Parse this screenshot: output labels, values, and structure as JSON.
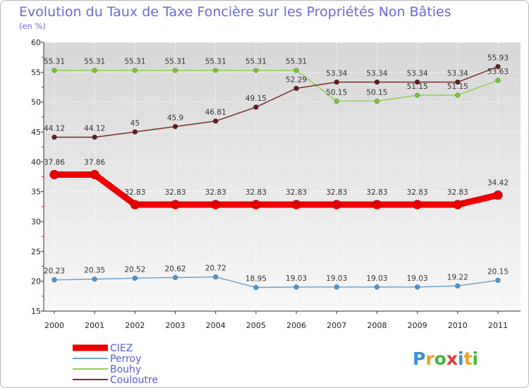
{
  "title": "Evolution du Taux de Taxe Foncière sur les Propriétés Non Bâties",
  "subtitle": "(en %)",
  "logo": "Proxiti",
  "chart_data": {
    "type": "line",
    "categories": [
      "2000",
      "2001",
      "2002",
      "2003",
      "2004",
      "2005",
      "2006",
      "2007",
      "2008",
      "2009",
      "2010",
      "2011"
    ],
    "ylim": [
      15,
      60
    ],
    "yticks": [
      15,
      20,
      25,
      30,
      35,
      40,
      45,
      50,
      55,
      60
    ],
    "ylabel": "(en %)",
    "series": [
      {
        "name": "Bouhy",
        "color": "#8fd14f",
        "dot": "#7ac13a",
        "width": 1.5,
        "r": 3.5,
        "values": [
          55.31,
          55.31,
          55.31,
          55.31,
          55.31,
          55.31,
          55.31,
          50.15,
          50.15,
          51.15,
          51.15,
          53.63
        ],
        "labels": [
          "55.31",
          "55.31",
          "55.31",
          "55.31",
          "55.31",
          "55.31",
          "55.31",
          "50.15",
          "50.15",
          "51.15",
          "51.15",
          "53.63"
        ]
      },
      {
        "name": "Couloutre",
        "color": "#7b2c2c",
        "dot": "#5e1f1f",
        "width": 1.5,
        "r": 3.5,
        "values": [
          44.12,
          44.12,
          45,
          45.9,
          46.81,
          49.15,
          52.29,
          53.34,
          53.34,
          53.34,
          53.34,
          55.93
        ],
        "labels": [
          "44.12",
          "44.12",
          "45",
          "45.9",
          "46.81",
          "49.15",
          "52.29",
          "53.34",
          "53.34",
          "53.34",
          "53.34",
          "55.93"
        ]
      },
      {
        "name": "CIEZ",
        "color": "#ee0000",
        "dot": "#e80000",
        "width": 9,
        "r": 6.5,
        "values": [
          37.86,
          37.86,
          32.83,
          32.83,
          32.83,
          32.83,
          32.83,
          32.83,
          32.83,
          32.83,
          32.83,
          34.42
        ],
        "labels": [
          "37.86",
          "37.86",
          "32.83",
          "32.83",
          "32.83",
          "32.83",
          "32.83",
          "32.83",
          "32.83",
          "32.83",
          "32.83",
          "34.42"
        ]
      },
      {
        "name": "Perroy",
        "color": "#6fa3cc",
        "dot": "#4f93c8",
        "width": 1.5,
        "r": 3.5,
        "values": [
          20.23,
          20.35,
          20.52,
          20.62,
          20.72,
          18.95,
          19.03,
          19.03,
          19.03,
          19.03,
          19.22,
          20.15
        ],
        "labels": [
          "20.23",
          "20.35",
          "20.52",
          "20.62",
          "20.72",
          "18.95",
          "19.03",
          "19.03",
          "19.03",
          "19.03",
          "19.22",
          "20.15"
        ]
      }
    ],
    "legend": [
      {
        "name": "CIEZ",
        "color": "#ee0000",
        "thick": true
      },
      {
        "name": "Perroy",
        "color": "#6fa3cc",
        "thick": false
      },
      {
        "name": "Bouhy",
        "color": "#8fd14f",
        "thick": false
      },
      {
        "name": "Couloutre",
        "color": "#7b2c2c",
        "thick": false
      }
    ]
  }
}
